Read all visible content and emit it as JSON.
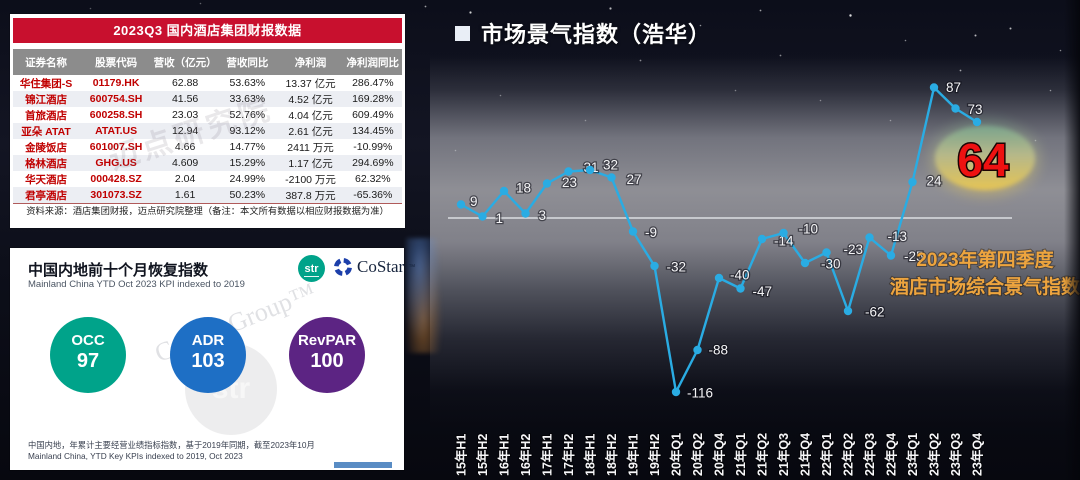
{
  "finance_table": {
    "title": "2023Q3 国内酒店集团财报数据",
    "columns": [
      "证券名称",
      "股票代码",
      "营收（亿元）",
      "营收同比",
      "净利润",
      "净利润同比"
    ],
    "rows": [
      [
        "华住集团-S",
        "01179.HK",
        "62.88",
        "53.63%",
        "13.37 亿元",
        "286.47%"
      ],
      [
        "锦江酒店",
        "600754.SH",
        "41.56",
        "33.63%",
        "4.52 亿元",
        "169.28%"
      ],
      [
        "首旅酒店",
        "600258.SH",
        "23.03",
        "52.76%",
        "4.04 亿元",
        "609.49%"
      ],
      [
        "亚朵 ATAT",
        "ATAT.US",
        "12.94",
        "93.12%",
        "2.61 亿元",
        "134.45%"
      ],
      [
        "金陵饭店",
        "601007.SH",
        "4.66",
        "14.77%",
        "2411 万元",
        "-10.99%"
      ],
      [
        "格林酒店",
        "GHG.US",
        "4.609",
        "15.29%",
        "1.17 亿元",
        "294.69%"
      ],
      [
        "华天酒店",
        "000428.SZ",
        "2.04",
        "24.99%",
        "-2100 万元",
        "62.32%"
      ],
      [
        "君亭酒店",
        "301073.SZ",
        "1.61",
        "50.23%",
        "387.8 万元",
        "-65.36%"
      ]
    ],
    "source_note": "资料来源：酒店集团财报，迈点研究院整理（备注：本文所有数据以相应财报数据为准）",
    "title_color": "#C8102E",
    "watermark": "迈点研究院"
  },
  "recovery_card": {
    "title": "中国内地前十个月恢复指数",
    "subtitle": "Mainland China YTD Oct 2023 KPI indexed to 2019",
    "logos": {
      "str": "str",
      "costar": "CoStar",
      "costar_tm": "™"
    },
    "metrics": [
      {
        "label": "OCC",
        "value": "97",
        "color": "#00A38A"
      },
      {
        "label": "ADR",
        "value": "103",
        "color": "#1E6FC5"
      },
      {
        "label": "RevPAR",
        "value": "100",
        "color": "#5C2483"
      }
    ],
    "footnote_zh": "中国内地，年累计主要经营业绩指标指数，基于2019年同期，截至2023年10月",
    "footnote_en": "Mainland China, YTD Key KPIs indexed to 2019, Oct 2023",
    "watermark": "CoStar Group™",
    "watermark_str": "str"
  },
  "chart_data": {
    "type": "line",
    "title": "市场景气指数（浩华）",
    "categories": [
      "15年H1",
      "15年H2",
      "16年H1",
      "16年H2",
      "17年H1",
      "17年H2",
      "18年H1",
      "18年H2",
      "19年H1",
      "19年H2",
      "20年Q1",
      "20年Q2",
      "20年Q4",
      "21年Q1",
      "21年Q2",
      "21年Q3",
      "21年Q4",
      "22年Q1",
      "22年Q2",
      "22年Q3",
      "22年Q4",
      "23年Q1",
      "23年Q2",
      "23年Q3",
      "23年Q4"
    ],
    "values": [
      9,
      1,
      18,
      3,
      23,
      31,
      32,
      27,
      -9,
      -32,
      -116,
      -88,
      -40,
      -47,
      -14,
      -10,
      -30,
      -23,
      -62,
      -13,
      -25,
      24,
      87,
      73,
      64
    ],
    "ylim": [
      -130,
      100
    ],
    "zero_line": true,
    "legend": "none",
    "grid": false,
    "line_color": "#2AACE3",
    "label_color": "#F4F4F6",
    "highlight": {
      "category": "23年Q4",
      "value": "64",
      "value_color": "#EE1111",
      "ellipse_colors": [
        "#7CA98F",
        "#BBBD8B",
        "#EDC94F"
      ]
    },
    "annotations": [
      "2023年第四季度",
      "酒店市场综合景气指数"
    ]
  }
}
